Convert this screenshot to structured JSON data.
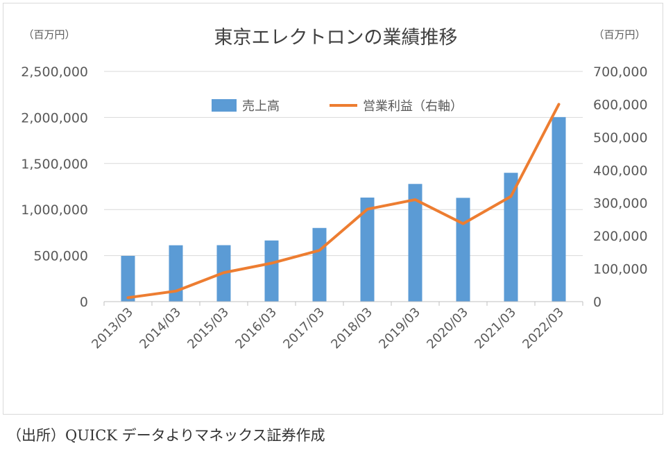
{
  "chart_data": {
    "type": "bar+line",
    "title": "東京エレクトロンの業績推移",
    "left_axis_unit": "（百万円）",
    "right_axis_unit": "（百万円）",
    "categories": [
      "2013/03",
      "2014/03",
      "2015/03",
      "2016/03",
      "2017/03",
      "2018/03",
      "2019/03",
      "2020/03",
      "2021/03",
      "2022/03"
    ],
    "series": [
      {
        "name": "売上高",
        "type": "bar",
        "axis": "left",
        "color": "#5b9bd5",
        "values": [
          497000,
          612000,
          613000,
          664000,
          800000,
          1130000,
          1278000,
          1127000,
          1399000,
          2004000
        ]
      },
      {
        "name": "営業利益（右軸）",
        "type": "line",
        "axis": "right",
        "color": "#ed7d31",
        "values": [
          12000,
          32000,
          88000,
          117000,
          156000,
          281000,
          310000,
          237000,
          320000,
          600000
        ]
      }
    ],
    "left_axis": {
      "min": 0,
      "max": 2500000,
      "ticks": [
        "0",
        "500,000",
        "1,000,000",
        "1,500,000",
        "2,000,000",
        "2,500,000"
      ]
    },
    "right_axis": {
      "min": 0,
      "max": 700000,
      "ticks": [
        "0",
        "100,000",
        "200,000",
        "300,000",
        "400,000",
        "500,000",
        "600,000",
        "700,000"
      ]
    },
    "grid": true,
    "legend_position": "top"
  },
  "source": "（出所）QUICK データよりマネックス証券作成"
}
